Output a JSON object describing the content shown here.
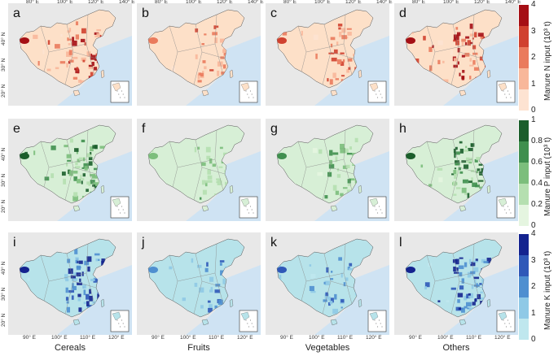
{
  "columns": [
    "Cereals",
    "Fruits",
    "Vegetables",
    "Others"
  ],
  "rows": [
    {
      "letters": [
        "a",
        "b",
        "c",
        "d"
      ],
      "colorbar_label": "Manure N input (10³ t)",
      "ticks": [
        "4",
        "3",
        "2",
        "1",
        "0"
      ],
      "palette": [
        "#fde3d2",
        "#f8b79a",
        "#ea7b5d",
        "#d0412f",
        "#a50f15"
      ],
      "base": "#fde0c8",
      "hot": "#c0392b"
    },
    {
      "letters": [
        "e",
        "f",
        "g",
        "h"
      ],
      "colorbar_label": "Manure P input (10³ t)",
      "ticks": [
        "1",
        "0.8",
        "0.6",
        "0.4",
        "0.2",
        "0"
      ],
      "palette": [
        "#e5f5e0",
        "#b5dfb0",
        "#7cbe7c",
        "#3f8f4e",
        "#1b5e2b"
      ],
      "base": "#d7efd6",
      "hot": "#2e7d3a"
    },
    {
      "letters": [
        "i",
        "j",
        "k",
        "l"
      ],
      "colorbar_label": "Manure K input (10³ t)",
      "ticks": [
        "4",
        "3",
        "2",
        "1",
        "0"
      ],
      "palette": [
        "#bfe7ee",
        "#8fc9e6",
        "#4f8fd0",
        "#2f58b8",
        "#14238f"
      ],
      "base": "#b7e3ea",
      "hot": "#2a52be"
    }
  ],
  "top_axis_ticks": [
    "80° E",
    "100° E",
    "120° E",
    "140° E"
  ],
  "bottom_axis_ticks": [
    "90° E",
    "100° E",
    "110° E",
    "120° E"
  ],
  "left_axis_ticks": [
    "40° N",
    "30° N",
    "20° N"
  ],
  "colors": {
    "sea": "#cfe3f3",
    "land_bg": "#e8e8e8",
    "border": "#555555"
  }
}
